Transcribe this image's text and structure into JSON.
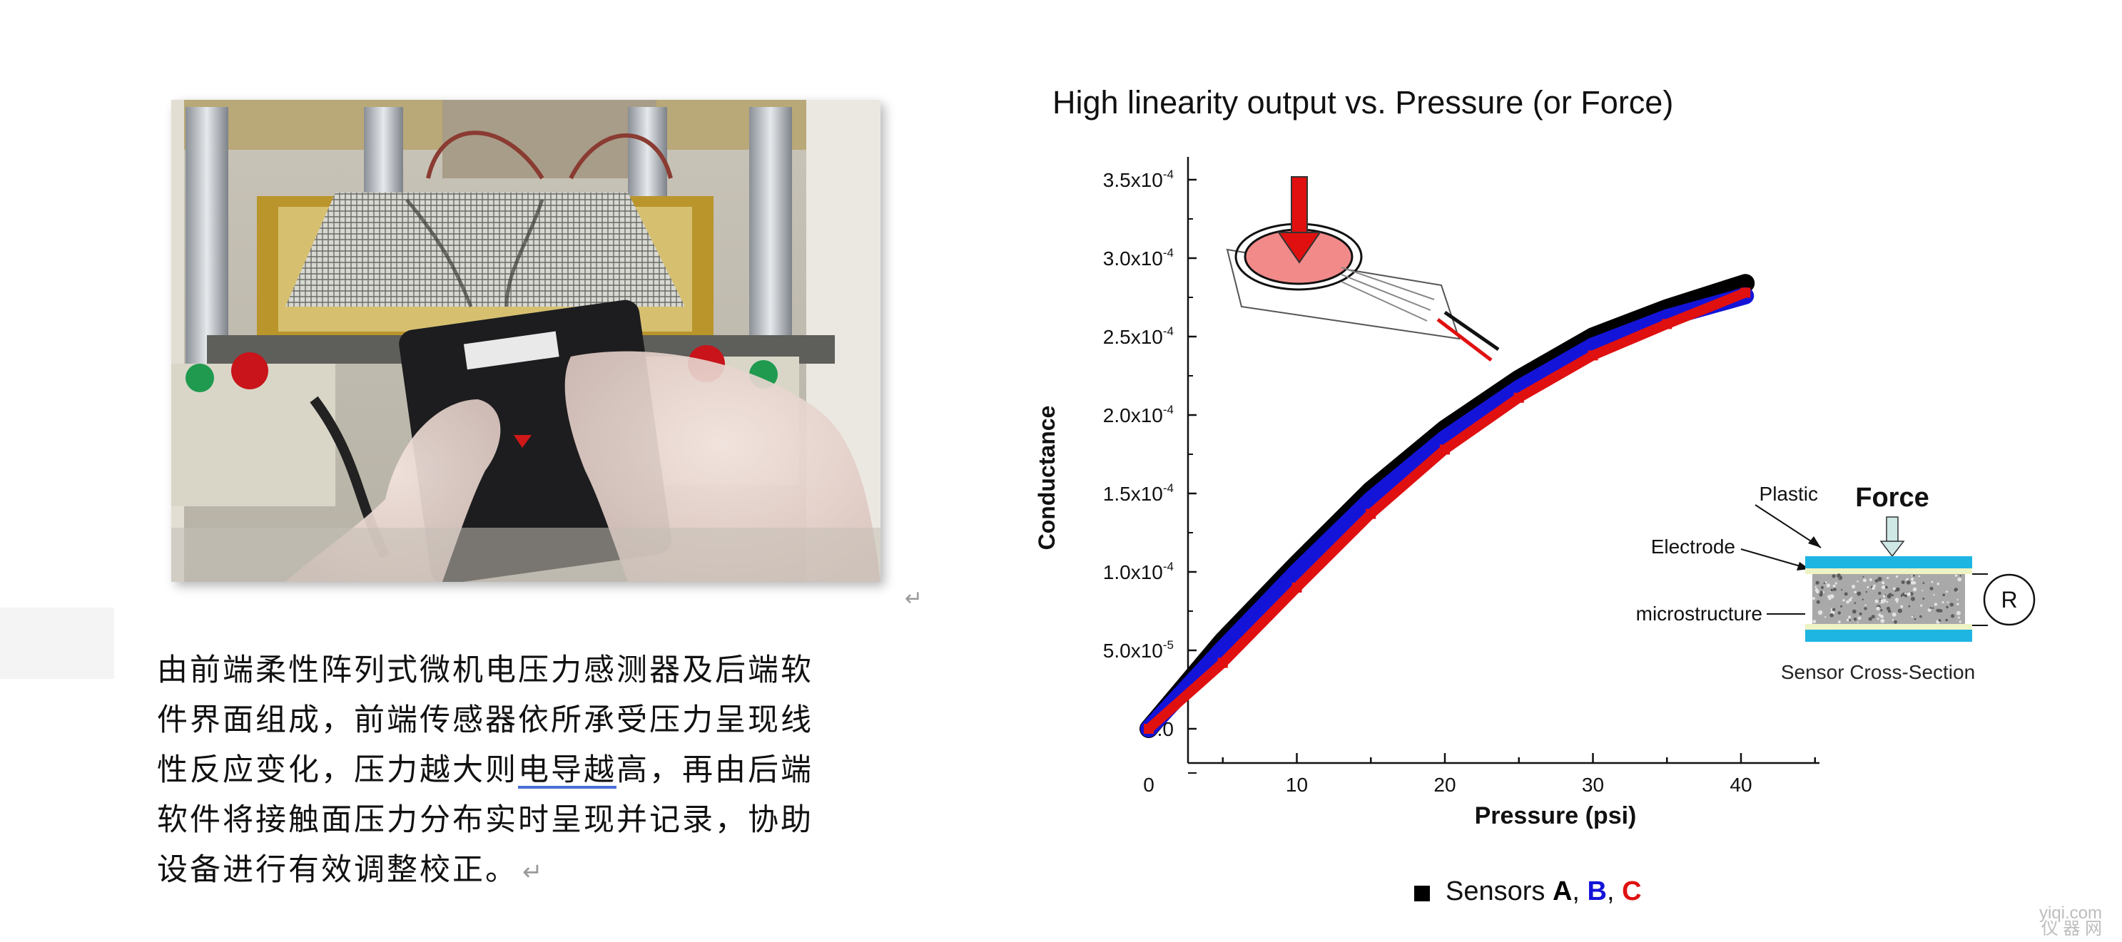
{
  "caption": {
    "line1": "由前端柔性阵列式微机电压力感测器及后端软",
    "line2": "件界面组成，前端传感器依所承受压力呈现线",
    "line3_a": "性反应变化，压力越大则",
    "line3_b": "电导越",
    "line3_c": "高，再由后端",
    "line4": "软件将接触面压力分布实时呈现并记录，协助",
    "line5": "设备进行有效调整校正。",
    "return_mark": "↵"
  },
  "photo": {
    "return_mark": "↵"
  },
  "chart_data": {
    "type": "scatter",
    "title": "High linearity output vs. Pressure (or Force)",
    "xlabel": "Pressure (psi)",
    "ylabel": "Conductance",
    "x_ticks": [
      "0",
      "10",
      "20",
      "30",
      "40"
    ],
    "y_ticks": [
      "0.0",
      "5.0x10",
      "1.0x10",
      "1.5x10",
      "2.0x10",
      "2.5x10",
      "3.0x10",
      "3.5x10"
    ],
    "y_tick_exponents": [
      "",
      "-5",
      "-4",
      "-4",
      "-4",
      "-4",
      "-4",
      "-4"
    ],
    "xlim": [
      -5,
      45
    ],
    "ylim": [
      -3e-05,
      0.00035
    ],
    "legend": {
      "prefix": "Sensors ",
      "a": "A",
      "sep1": ", ",
      "b": "B",
      "sep2": ", ",
      "c": "C",
      "placement": "bottom-center"
    },
    "series": [
      {
        "name": "A",
        "color": "#000000",
        "x": [
          0,
          5,
          10,
          15,
          20,
          25,
          30,
          35,
          40.3
        ],
        "y": [
          0,
          5.6e-05,
          0.000105,
          0.000152,
          0.000191,
          0.000223,
          0.00025,
          0.000268,
          0.000284
        ]
      },
      {
        "name": "B",
        "color": "#1414d8",
        "x": [
          0,
          5,
          10,
          15,
          20,
          25,
          30,
          35,
          40.3
        ],
        "y": [
          0,
          5.1e-05,
          0.0001,
          0.000146,
          0.000185,
          0.000217,
          0.000244,
          0.000262,
          0.000276
        ]
      },
      {
        "name": "C",
        "color": "#e01010",
        "x": [
          0,
          5,
          10,
          15,
          20,
          25,
          30,
          35,
          40.3
        ],
        "y": [
          0,
          4.2e-05,
          9e-05,
          0.000137,
          0.000178,
          0.000211,
          0.000238,
          0.000258,
          0.000278
        ]
      }
    ],
    "inset_diagram": {
      "force_label": "Force",
      "plastic_label": "Plastic",
      "electrode_label": "Electrode",
      "microstructure_label": "microstructure",
      "resistor_label": "R",
      "caption": "Sensor Cross-Section"
    }
  },
  "watermark": {
    "line1": "yiqi.com",
    "line2": "仪 器 网"
  }
}
